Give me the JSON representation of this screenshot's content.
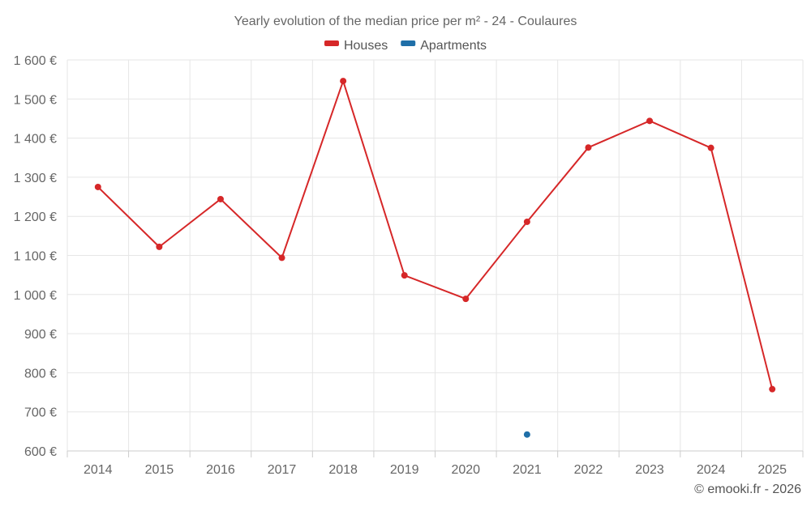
{
  "chart_data": {
    "type": "line",
    "title": "Yearly evolution of the median price per m² - 24 - Coulaures",
    "categories": [
      "2014",
      "2015",
      "2016",
      "2017",
      "2018",
      "2019",
      "2020",
      "2021",
      "2022",
      "2023",
      "2024",
      "2025"
    ],
    "series": [
      {
        "name": "Houses",
        "color": "#d62728",
        "values": [
          1275,
          1122,
          1244,
          1094,
          1546,
          1049,
          989,
          1186,
          1376,
          1444,
          1375,
          758
        ]
      },
      {
        "name": "Apartments",
        "color": "#1f6fa8",
        "values": [
          null,
          null,
          null,
          null,
          null,
          null,
          null,
          642,
          null,
          null,
          null,
          null
        ]
      }
    ],
    "ylim": [
      600,
      1600
    ],
    "yticks": [
      600,
      700,
      800,
      900,
      1000,
      1100,
      1200,
      1300,
      1400,
      1500,
      1600
    ],
    "ytick_labels": [
      "600 €",
      "700 €",
      "800 €",
      "900 €",
      "1 000 €",
      "1 100 €",
      "1 200 €",
      "1 300 €",
      "1 400 €",
      "1 500 €",
      "1 600 €"
    ],
    "xlabel": "",
    "ylabel": "",
    "grid": true,
    "legend_position": "top-center"
  },
  "credit": "© emooki.fr - 2026"
}
